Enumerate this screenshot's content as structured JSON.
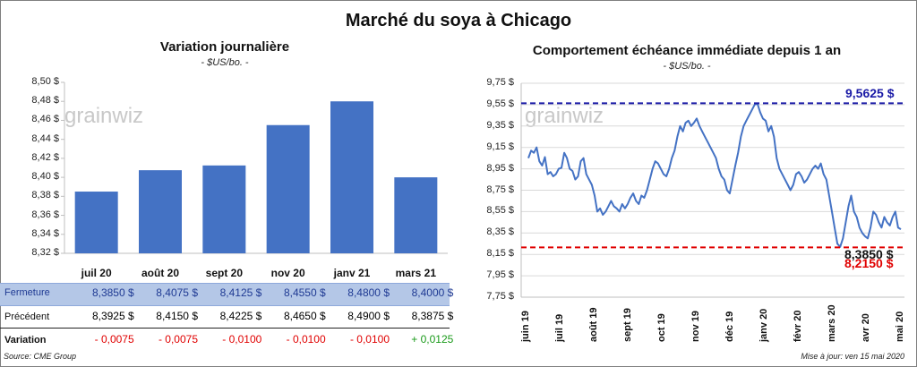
{
  "title": "Marché du soya à Chicago",
  "watermark": "grainwiz",
  "left": {
    "title": "Variation journalière",
    "unit": "- $US/bo. -",
    "rows": {
      "close_label": "Fermeture",
      "prev_label": "Précédent",
      "var_label": "Variation"
    }
  },
  "right": {
    "title": "Comportement échéance immédiate depuis 1 an",
    "unit": "- $US/bo. -",
    "high_label": "9,5625 $",
    "low_label": "8,2150 $",
    "last_label": "8,3850 $"
  },
  "footer": {
    "source": "Source: CME Group",
    "updated": "Mise à jour: ven 15 mai 2020"
  },
  "colors": {
    "bar": "#4472c4",
    "line": "#4472c4",
    "high_ref": "#1a1aa6",
    "low_ref": "#e00000",
    "band": "#b4c7e7"
  },
  "chart_data": [
    {
      "type": "bar",
      "categories": [
        "juil 20",
        "août 20",
        "sept 20",
        "nov 20",
        "janv 21",
        "mars 21"
      ],
      "values": [
        8.385,
        8.4075,
        8.4125,
        8.455,
        8.48,
        8.4
      ],
      "previous": [
        8.3925,
        8.415,
        8.4225,
        8.465,
        8.49,
        8.3875
      ],
      "close_labels": [
        "8,3850 $",
        "8,4075 $",
        "8,4125 $",
        "8,4550 $",
        "8,4800 $",
        "8,4000 $"
      ],
      "prev_labels": [
        "8,3925 $",
        "8,4150 $",
        "8,4225 $",
        "8,4650 $",
        "8,4900 $",
        "8,3875 $"
      ],
      "var_labels": [
        "- 0,0075",
        "- 0,0075",
        "- 0,0100",
        "- 0,0100",
        "- 0,0100",
        "+ 0,0125"
      ],
      "var_signs": [
        "neg",
        "neg",
        "neg",
        "neg",
        "neg",
        "pos"
      ],
      "ylim": [
        8.32,
        8.5
      ],
      "yticks": [
        "8,32 $",
        "8,34 $",
        "8,36 $",
        "8,38 $",
        "8,40 $",
        "8,42 $",
        "8,44 $",
        "8,46 $",
        "8,48 $",
        "8,50 $"
      ],
      "grid": false
    },
    {
      "type": "line",
      "ylim": [
        7.75,
        9.75
      ],
      "yticks": [
        "7,75 $",
        "7,95 $",
        "8,15 $",
        "8,35 $",
        "8,55 $",
        "8,75 $",
        "8,95 $",
        "9,15 $",
        "9,35 $",
        "9,55 $",
        "9,75 $"
      ],
      "xticks": [
        "juin 19",
        "juil 19",
        "août 19",
        "sept 19",
        "oct 19",
        "nov 19",
        "déc 19",
        "janv 20",
        "févr 20",
        "mars 20",
        "avr 20",
        "mai 20"
      ],
      "high": 9.5625,
      "low": 8.215,
      "last": 8.385,
      "series": [
        {
          "values": [
            9.05,
            9.12,
            9.1,
            9.15,
            9.02,
            8.98,
            9.06,
            8.9,
            8.92,
            8.88,
            8.9,
            8.95,
            8.96,
            9.1,
            9.05,
            8.95,
            8.93,
            8.85,
            8.88,
            9.02,
            9.05,
            8.9,
            8.85,
            8.8,
            8.7,
            8.55,
            8.58,
            8.52,
            8.55,
            8.6,
            8.65,
            8.6,
            8.58,
            8.55,
            8.62,
            8.58,
            8.62,
            8.68,
            8.72,
            8.65,
            8.62,
            8.7,
            8.68,
            8.75,
            8.85,
            8.95,
            9.02,
            9.0,
            8.95,
            8.9,
            8.88,
            8.95,
            9.05,
            9.12,
            9.25,
            9.35,
            9.3,
            9.38,
            9.4,
            9.35,
            9.38,
            9.42,
            9.35,
            9.3,
            9.25,
            9.2,
            9.15,
            9.1,
            9.05,
            8.95,
            8.88,
            8.85,
            8.75,
            8.72,
            8.85,
            8.98,
            9.1,
            9.25,
            9.35,
            9.4,
            9.45,
            9.5,
            9.55,
            9.56,
            9.48,
            9.42,
            9.4,
            9.3,
            9.35,
            9.25,
            9.05,
            8.95,
            8.9,
            8.85,
            8.8,
            8.75,
            8.8,
            8.9,
            8.92,
            8.88,
            8.82,
            8.85,
            8.9,
            8.95,
            8.98,
            8.95,
            9.0,
            8.9,
            8.85,
            8.7,
            8.55,
            8.4,
            8.25,
            8.22,
            8.3,
            8.45,
            8.6,
            8.7,
            8.55,
            8.5,
            8.4,
            8.35,
            8.32,
            8.3,
            8.4,
            8.55,
            8.52,
            8.45,
            8.4,
            8.5,
            8.45,
            8.42,
            8.5,
            8.55,
            8.4,
            8.385
          ]
        }
      ],
      "grid": true
    }
  ]
}
